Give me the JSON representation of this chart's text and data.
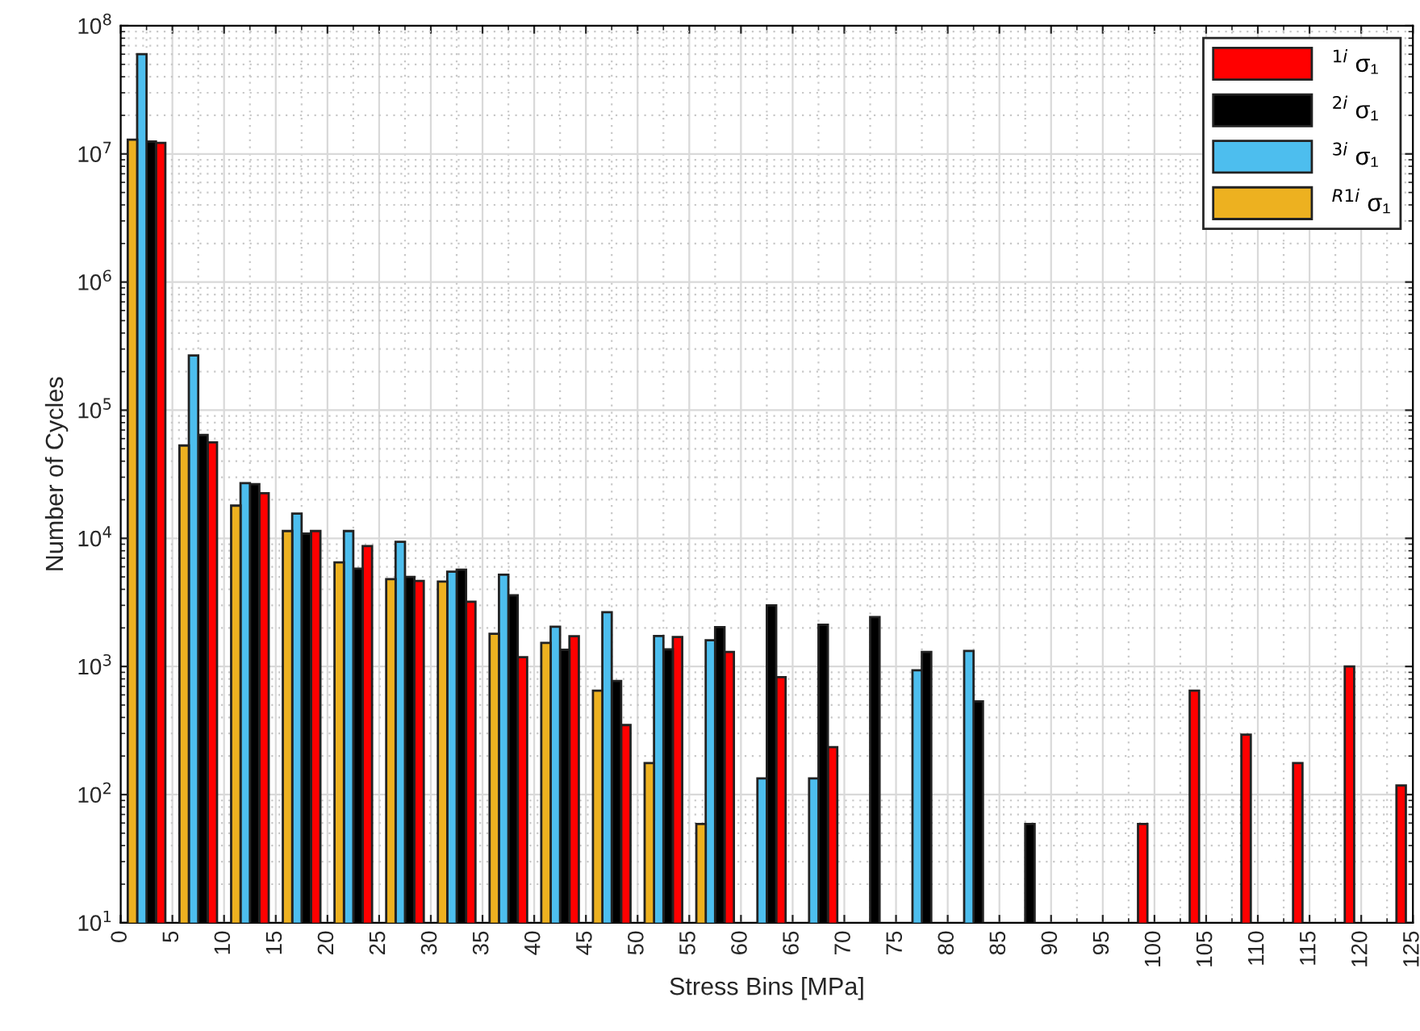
{
  "chart_data": {
    "type": "bar",
    "xlabel": "Stress Bins [MPa]",
    "ylabel": "Number of Cycles",
    "x": [
      2.5,
      7.5,
      12.5,
      17.5,
      22.5,
      27.5,
      32.5,
      37.5,
      42.5,
      47.5,
      52.5,
      57.5,
      62.5,
      67.5,
      72.5,
      77.5,
      82.5,
      87.5,
      92.5,
      97.5,
      102.5,
      107.5,
      112.5,
      117.5,
      122.5
    ],
    "series": [
      {
        "name": "$^{1i}$ σ₁",
        "color": "#ff0000",
        "values": [
          12200000,
          56000,
          22500,
          11400,
          8700,
          4650,
          3200,
          1180,
          1720,
          349,
          1700,
          1300,
          826,
          235,
          null,
          null,
          null,
          null,
          null,
          59,
          647,
          294,
          176,
          1000,
          118
        ]
      },
      {
        "name": "$^{2i}$ σ₁",
        "color": "#000000",
        "values": [
          12500000,
          64000,
          26500,
          10900,
          5800,
          5000,
          5700,
          3600,
          1350,
          770,
          1360,
          2030,
          3000,
          2120,
          2430,
          1300,
          535,
          59,
          null,
          null,
          null,
          null,
          null,
          null,
          null
        ]
      },
      {
        "name": "$^{3i}$ σ₁",
        "color": "#4dbeee",
        "values": [
          60000000,
          267000,
          27000,
          15600,
          11400,
          9400,
          5500,
          5200,
          2040,
          2650,
          1730,
          1600,
          134,
          134,
          null,
          935,
          1320,
          null,
          null,
          null,
          null,
          null,
          null,
          null,
          null
        ]
      },
      {
        "name": "$^{R1i}$ σ₁",
        "color": "#edb120",
        "values": [
          12900000,
          53000,
          18000,
          11400,
          6500,
          4800,
          4600,
          1800,
          1530,
          647,
          176,
          59,
          null,
          null,
          null,
          null,
          null,
          null,
          null,
          null,
          null,
          null,
          null,
          null,
          null
        ]
      }
    ],
    "log": "y",
    "xlim": [
      0,
      125
    ],
    "ylim": [
      10,
      100000000
    ],
    "xticks": [
      0,
      5,
      10,
      15,
      20,
      25,
      30,
      35,
      40,
      45,
      50,
      55,
      60,
      65,
      70,
      75,
      80,
      85,
      90,
      95,
      100,
      105,
      110,
      115,
      120,
      125
    ],
    "yticks": [
      {
        "value": 10,
        "label": "10$^{1}$"
      },
      {
        "value": 100,
        "label": "10$^{2}$"
      },
      {
        "value": 1000,
        "label": "10$^{3}$"
      },
      {
        "value": 10000,
        "label": "10$^{4}$"
      },
      {
        "value": 100000,
        "label": "10$^{5}$"
      },
      {
        "value": 1000000,
        "label": "10$^{6}$"
      },
      {
        "value": 10000000,
        "label": "10$^{7}$"
      },
      {
        "value": 100000000,
        "label": "10$^{8}$"
      }
    ],
    "grid": true,
    "legend": "top right"
  }
}
